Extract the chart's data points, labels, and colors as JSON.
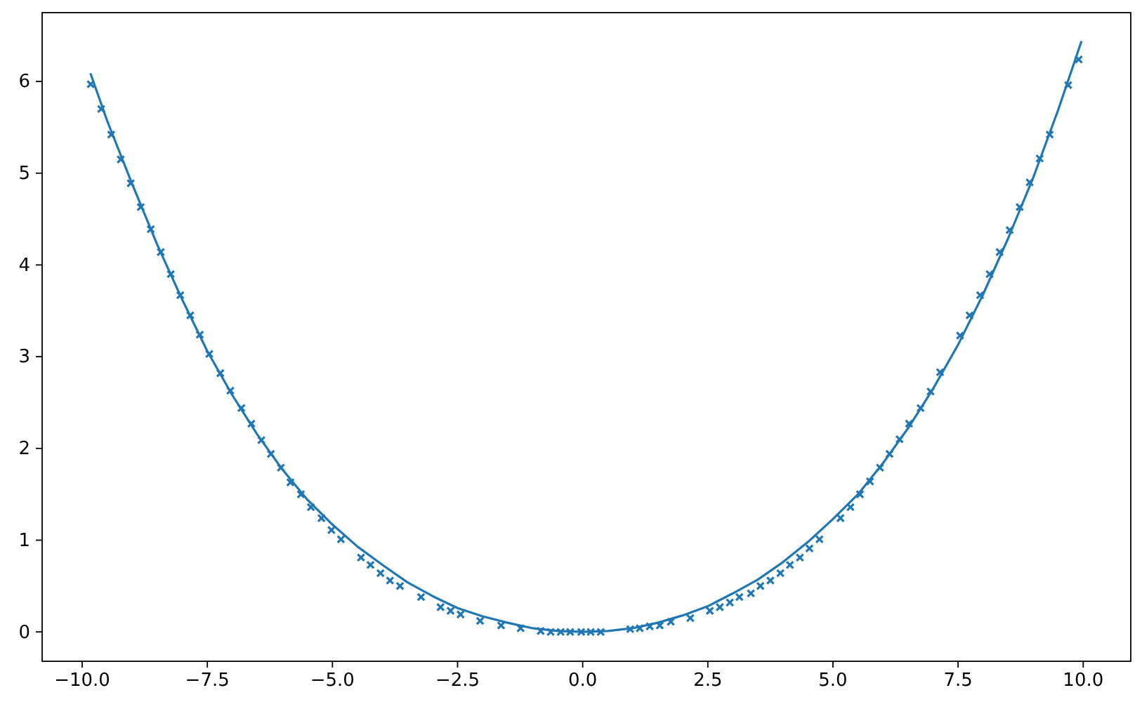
{
  "chart_data": {
    "type": "scatter",
    "xlim": [
      -10.8,
      10.95
    ],
    "ylim": [
      -0.32,
      6.75
    ],
    "xticks": [
      {
        "value": -10,
        "label": "−10.0"
      },
      {
        "value": -7.5,
        "label": "−7.5"
      },
      {
        "value": -5,
        "label": "−5.0"
      },
      {
        "value": -2.5,
        "label": "−2.5"
      },
      {
        "value": 0,
        "label": "0.0"
      },
      {
        "value": 2.5,
        "label": "2.5"
      },
      {
        "value": 5,
        "label": "5.0"
      },
      {
        "value": 7.5,
        "label": "7.5"
      },
      {
        "value": 10,
        "label": "10.0"
      }
    ],
    "yticks": [
      0,
      1,
      2,
      3,
      4,
      5,
      6
    ],
    "series": [
      {
        "color": "#1f77b4",
        "marker": "cross",
        "x": [
          -9.83,
          -9.62,
          -9.42,
          -9.23,
          -9.03,
          -8.83,
          -8.63,
          -8.43,
          -8.23,
          -8.04,
          -7.84,
          -7.65,
          -7.46,
          -7.24,
          -7.04,
          -6.82,
          -6.62,
          -6.42,
          -6.23,
          -6.03,
          -5.84,
          -5.63,
          -5.43,
          -5.22,
          -5.02,
          -4.83,
          -4.43,
          -4.24,
          -4.04,
          -3.85,
          -3.65,
          -3.23,
          -2.84,
          -2.64,
          -2.44,
          -2.05,
          -1.63,
          -1.24,
          -0.84,
          -0.64,
          -0.44,
          -0.25,
          -0.03,
          0.16,
          0.36,
          0.95,
          1.14,
          1.34,
          1.54,
          1.76,
          2.15,
          2.54,
          2.74,
          2.94,
          3.13,
          3.36,
          3.55,
          3.75,
          3.95,
          4.14,
          4.34,
          4.53,
          4.73,
          5.15,
          5.35,
          5.54,
          5.74,
          5.94,
          6.13,
          6.33,
          6.52,
          6.75,
          6.95,
          7.14,
          7.54,
          7.73,
          7.94,
          8.13,
          8.33,
          8.53,
          8.73,
          8.93,
          9.13,
          9.33,
          9.7,
          9.91
        ],
        "values": [
          5.97,
          5.7,
          5.42,
          5.15,
          4.89,
          4.63,
          4.39,
          4.14,
          3.9,
          3.67,
          3.45,
          3.24,
          3.03,
          2.82,
          2.63,
          2.44,
          2.27,
          2.09,
          1.94,
          1.79,
          1.63,
          1.5,
          1.36,
          1.24,
          1.11,
          1.01,
          0.81,
          0.73,
          0.64,
          0.56,
          0.5,
          0.38,
          0.27,
          0.23,
          0.19,
          0.12,
          0.07,
          0.04,
          0.01,
          0,
          0,
          0,
          0,
          0,
          0,
          0.03,
          0.04,
          0.06,
          0.07,
          0.11,
          0.15,
          0.23,
          0.27,
          0.32,
          0.38,
          0.42,
          0.5,
          0.56,
          0.64,
          0.73,
          0.81,
          0.91,
          1.01,
          1.24,
          1.36,
          1.5,
          1.64,
          1.79,
          1.94,
          2.1,
          2.27,
          2.44,
          2.62,
          2.83,
          3.23,
          3.45,
          3.67,
          3.9,
          4.14,
          4.38,
          4.63,
          4.9,
          5.16,
          5.42,
          5.96,
          6.24
        ]
      },
      {
        "type": "line",
        "color": "#1f77b4",
        "line_style": "solid",
        "x": [
          -9.83,
          -9.5,
          -9,
          -8.5,
          -8,
          -7.5,
          -7,
          -6.5,
          -6,
          -5.5,
          -5,
          -4.5,
          -4,
          -3.5,
          -3,
          -2.5,
          -2,
          -1.5,
          -1,
          -0.5,
          0,
          0.5,
          1,
          1.5,
          2,
          2.5,
          3,
          3.5,
          4,
          4.5,
          5,
          5.5,
          6,
          6.5,
          7,
          7.5,
          8,
          8.5,
          9,
          9.5,
          9.96
        ],
        "values": [
          6.08,
          5.57,
          4.88,
          4.22,
          3.62,
          3.06,
          2.58,
          2.15,
          1.77,
          1.44,
          1.17,
          0.93,
          0.73,
          0.54,
          0.39,
          0.26,
          0.17,
          0.1,
          0.04,
          0.01,
          0,
          0.01,
          0.04,
          0.1,
          0.18,
          0.28,
          0.42,
          0.57,
          0.76,
          0.98,
          1.23,
          1.5,
          1.84,
          2.22,
          2.65,
          3.13,
          3.68,
          4.29,
          4.95,
          5.69,
          6.43
        ]
      }
    ]
  }
}
